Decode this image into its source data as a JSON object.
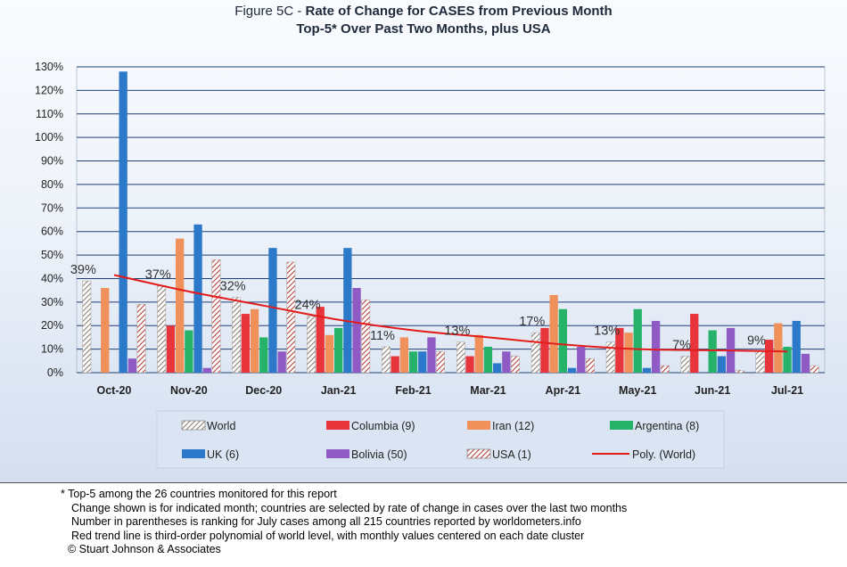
{
  "title": {
    "prefix": "Figure 5C - ",
    "main": "Rate of Change for CASES from Previous Month",
    "subtitle": "Top-5* Over Past Two Months, plus USA"
  },
  "colors": {
    "world": "#c9b9ad",
    "columbia": "#e8353b",
    "iran": "#f0905a",
    "argentina": "#27b26a",
    "uk": "#2b79c8",
    "bolivia": "#8f5ac4",
    "usa": "#b0433e",
    "trend": "#e31b1b"
  },
  "chart_data": {
    "type": "bar",
    "title": "Rate of Change for CASES from Previous Month",
    "subtitle": "Top-5* Over Past Two Months, plus USA",
    "ylim": [
      0,
      130
    ],
    "yticks": [
      "0%",
      "10%",
      "20%",
      "30%",
      "40%",
      "50%",
      "60%",
      "70%",
      "80%",
      "90%",
      "100%",
      "110%",
      "120%",
      "130%"
    ],
    "grid": true,
    "legend_position": "bottom",
    "categories": [
      "Oct-20",
      "Nov-20",
      "Dec-20",
      "Jan-21",
      "Feb-21",
      "Mar-21",
      "Apr-21",
      "May-21",
      "Jun-21",
      "Jul-21"
    ],
    "series": [
      {
        "name": "World",
        "key": "world",
        "pattern": "hatch-gray",
        "values": [
          39,
          37,
          32,
          24,
          11,
          13,
          17,
          13,
          7,
          9
        ]
      },
      {
        "name": "Columbia (9)",
        "key": "columbia",
        "values": [
          0,
          20,
          25,
          28,
          7,
          7,
          19,
          19,
          25,
          14
        ]
      },
      {
        "name": "Iran (12)",
        "key": "iran",
        "values": [
          36,
          57,
          27,
          16,
          15,
          16,
          33,
          17,
          0,
          21
        ]
      },
      {
        "name": "Argentina (8)",
        "key": "argentina",
        "values": [
          0,
          18,
          15,
          19,
          9,
          11,
          27,
          27,
          18,
          11
        ]
      },
      {
        "name": "UK (6)",
        "key": "uk",
        "values": [
          128,
          63,
          53,
          53,
          9,
          4,
          2,
          2,
          7,
          22
        ]
      },
      {
        "name": "Bolivia (50)",
        "key": "bolivia",
        "values": [
          6,
          2,
          9,
          36,
          15,
          9,
          11,
          22,
          19,
          8
        ]
      },
      {
        "name": "USA (1)",
        "key": "usa",
        "pattern": "hatch-red",
        "values": [
          29,
          48,
          47,
          31,
          9,
          7,
          6,
          3,
          1,
          3
        ]
      }
    ],
    "data_labels": [
      "39%",
      "37%",
      "32%",
      "24%",
      "11%",
      "13%",
      "17%",
      "13%",
      "7%",
      "9%"
    ],
    "trendline": {
      "name": "Poly. (World)",
      "type": "polynomial order 3",
      "values": [
        41.5,
        34.5,
        28.5,
        22.5,
        18,
        15,
        12,
        10,
        9.5,
        9
      ]
    }
  },
  "legend": [
    {
      "key": "world",
      "label": "World"
    },
    {
      "key": "columbia",
      "label": "Columbia (9)"
    },
    {
      "key": "iran",
      "label": "Iran (12)"
    },
    {
      "key": "argentina",
      "label": "Argentina (8)"
    },
    {
      "key": "uk",
      "label": "UK (6)"
    },
    {
      "key": "bolivia",
      "label": "Bolivia (50)"
    },
    {
      "key": "usa",
      "label": "USA (1)"
    },
    {
      "key": "trend",
      "label": "Poly. (World)"
    }
  ],
  "footnotes": {
    "line1": "* Top-5 among the 26 countries monitored for this report",
    "line2": "Change shown is for indicated month; countries are selected by rate of change in cases over the last two months",
    "line3": "Number in parentheses is ranking for July cases among all 215 countries reported by worldometers.info",
    "line4": "Red trend line is third-order polynomial of world level, with monthly values centered on each date cluster",
    "line5": "© Stuart Johnson & Associates"
  }
}
